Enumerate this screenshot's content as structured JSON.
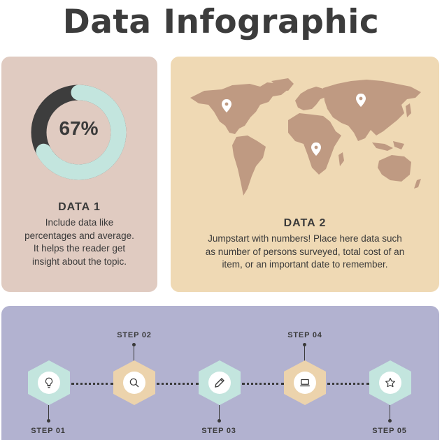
{
  "title": "Data Infographic",
  "colors": {
    "card1": "#e0cbc1",
    "card2": "#efd9b4",
    "card3": "#b2b2d0",
    "donut_dark": "#3d3d3d",
    "donut_light": "#c3e5de",
    "map": "#bf9a82",
    "hex_green": "#c3e5de",
    "hex_tan": "#ecd3ac"
  },
  "data1": {
    "percent_label": "67%",
    "percent_value": 67,
    "heading": "DATA 1",
    "lines": [
      "Include data like",
      "percentages and average.",
      "It helps the reader get",
      "insight about the topic."
    ]
  },
  "data2": {
    "heading": "DATA 2",
    "lines": [
      "Jumpstart with numbers! Place here data such",
      "as number of persons surveyed, total cost of an",
      "item, or an important date to remember."
    ]
  },
  "steps": [
    {
      "label": "STEP 01",
      "icon": "lightbulb-icon"
    },
    {
      "label": "STEP 02",
      "icon": "search-icon"
    },
    {
      "label": "STEP 03",
      "icon": "pencil-icon"
    },
    {
      "label": "STEP 04",
      "icon": "laptop-icon"
    },
    {
      "label": "STEP 05",
      "icon": "star-icon"
    }
  ]
}
